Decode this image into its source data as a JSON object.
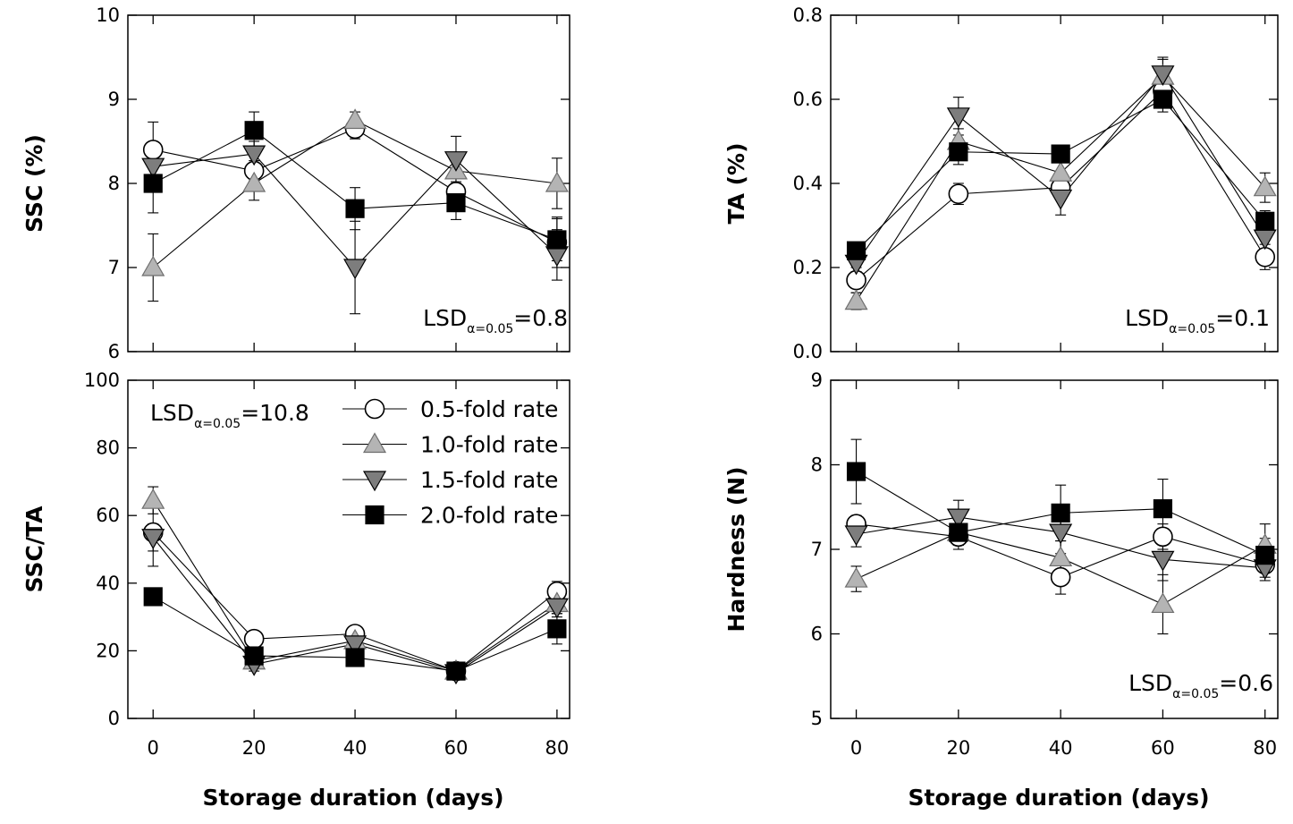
{
  "figure": {
    "xlabel": "Storage duration (days)",
    "lsd_prefix": "LSD",
    "lsd_sub": "α=0.05"
  },
  "colors": {
    "c05_fill": "#ffffff",
    "c10_fill": "#b4b4b4",
    "c15_fill": "#7d7d7d",
    "c20_fill": "#000000",
    "line": "#000000",
    "gray_stroke": "#6e6e6e"
  },
  "legend": [
    {
      "key": "c05",
      "label": "0.5-fold rate",
      "marker": "circle"
    },
    {
      "key": "c10",
      "label": "1.0-fold rate",
      "marker": "triangle-up"
    },
    {
      "key": "c15",
      "label": "1.5-fold rate",
      "marker": "triangle-down"
    },
    {
      "key": "c20",
      "label": "2.0-fold rate",
      "marker": "square"
    }
  ],
  "chart_data": [
    {
      "id": "ssc",
      "type": "line",
      "ylabel": "SSC (%)",
      "xlabel": "",
      "x": [
        0,
        20,
        40,
        60,
        80
      ],
      "xticks": [],
      "ylim": [
        6,
        10
      ],
      "yticks": [
        "6",
        "7",
        "8",
        "9",
        "10"
      ],
      "lsd_value": "=0.8",
      "series": [
        {
          "key": "c05",
          "name": "0.5-fold rate",
          "values": [
            8.4,
            8.15,
            8.65,
            7.9,
            7.3
          ],
          "err": [
            0.33,
            0.12,
            0.12,
            0.12,
            0.3
          ]
        },
        {
          "key": "c10",
          "name": "1.0-fold rate",
          "values": [
            7.0,
            8.0,
            8.75,
            8.15,
            8.0
          ],
          "err": [
            0.4,
            0.2,
            0.1,
            0.15,
            0.3
          ]
        },
        {
          "key": "c15",
          "name": "1.5-fold rate",
          "values": [
            8.2,
            8.35,
            7.0,
            8.28,
            7.15
          ],
          "err": [
            0.15,
            0.15,
            0.55,
            0.28,
            0.3
          ]
        },
        {
          "key": "c20",
          "name": "2.0-fold rate",
          "values": [
            8.0,
            8.63,
            7.7,
            7.77,
            7.33
          ],
          "err": [
            0.35,
            0.22,
            0.25,
            0.2,
            0.25
          ]
        }
      ]
    },
    {
      "id": "ta",
      "type": "line",
      "ylabel": "TA (%)",
      "xlabel": "",
      "x": [
        0,
        20,
        40,
        60,
        80
      ],
      "xticks": [],
      "ylim": [
        0.0,
        0.8
      ],
      "yticks": [
        "0.0",
        "0.2",
        "0.4",
        "0.6",
        "0.8"
      ],
      "lsd_value": "=0.1",
      "series": [
        {
          "key": "c05",
          "name": "0.5-fold rate",
          "values": [
            0.17,
            0.375,
            0.39,
            0.62,
            0.225
          ],
          "err": [
            0.03,
            0.025,
            0.02,
            0.03,
            0.03
          ]
        },
        {
          "key": "c10",
          "name": "1.0-fold rate",
          "values": [
            0.12,
            0.5,
            0.425,
            0.655,
            0.39
          ],
          "err": [
            0.02,
            0.03,
            0.03,
            0.04,
            0.035
          ]
        },
        {
          "key": "c15",
          "name": "1.5-fold rate",
          "values": [
            0.21,
            0.56,
            0.365,
            0.66,
            0.27
          ],
          "err": [
            0.02,
            0.045,
            0.04,
            0.04,
            0.03
          ]
        },
        {
          "key": "c20",
          "name": "2.0-fold rate",
          "values": [
            0.24,
            0.475,
            0.47,
            0.6,
            0.31
          ],
          "err": [
            0.02,
            0.03,
            0.02,
            0.03,
            0.025
          ]
        }
      ]
    },
    {
      "id": "sscta",
      "type": "line",
      "ylabel": "SSC/TA",
      "xlabel": "Storage duration (days)",
      "x": [
        0,
        20,
        40,
        60,
        80
      ],
      "xticks": [
        "0",
        "20",
        "40",
        "60",
        "80"
      ],
      "ylim": [
        0,
        100
      ],
      "yticks": [
        "0",
        "20",
        "40",
        "60",
        "80",
        "100"
      ],
      "lsd_value": "=10.8",
      "series": [
        {
          "key": "c05",
          "name": "0.5-fold rate",
          "values": [
            55,
            23.5,
            25,
            14,
            37.5
          ],
          "err": [
            10,
            2,
            2,
            1.5,
            3
          ]
        },
        {
          "key": "c10",
          "name": "1.0-fold rate",
          "values": [
            64.5,
            17,
            23,
            14,
            34
          ],
          "err": [
            4,
            2,
            2,
            1.5,
            3
          ]
        },
        {
          "key": "c15",
          "name": "1.5-fold rate",
          "values": [
            53.5,
            16,
            22,
            13.5,
            33
          ],
          "err": [
            4,
            2,
            2,
            1.5,
            3
          ]
        },
        {
          "key": "c20",
          "name": "2.0-fold rate",
          "values": [
            36,
            18.5,
            18,
            14,
            26.5
          ],
          "err": [
            2,
            2,
            2,
            1.5,
            4.5
          ]
        }
      ]
    },
    {
      "id": "hardness",
      "type": "line",
      "ylabel": "Hardness (N)",
      "xlabel": "Storage duration (days)",
      "x": [
        0,
        20,
        40,
        60,
        80
      ],
      "xticks": [
        "0",
        "20",
        "40",
        "60",
        "80"
      ],
      "ylim": [
        5,
        9
      ],
      "yticks": [
        "5",
        "6",
        "7",
        "8",
        "9"
      ],
      "lsd_value": "=0.6",
      "series": [
        {
          "key": "c05",
          "name": "0.5-fold rate",
          "values": [
            7.3,
            7.15,
            6.67,
            7.15,
            6.82
          ],
          "err": [
            0.1,
            0.15,
            0.2,
            0.15,
            0.15
          ]
        },
        {
          "key": "c10",
          "name": "1.0-fold rate",
          "values": [
            6.65,
            7.2,
            6.9,
            6.35,
            7.05
          ],
          "err": [
            0.15,
            0.15,
            0.2,
            0.35,
            0.25
          ]
        },
        {
          "key": "c15",
          "name": "1.5-fold rate",
          "values": [
            7.18,
            7.38,
            7.2,
            6.88,
            6.78
          ],
          "err": [
            0.15,
            0.2,
            0.25,
            0.25,
            0.15
          ]
        },
        {
          "key": "c20",
          "name": "2.0-fold rate",
          "values": [
            7.92,
            7.2,
            7.43,
            7.48,
            6.93
          ],
          "err": [
            0.38,
            0.15,
            0.33,
            0.35,
            0.2
          ]
        }
      ]
    }
  ]
}
